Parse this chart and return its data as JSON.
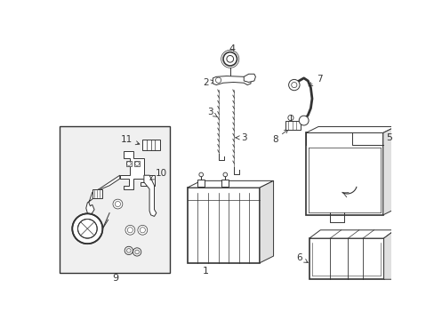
{
  "background_color": "#ffffff",
  "line_color": "#333333",
  "fill_light": "#f0f0f0",
  "fill_white": "#ffffff",
  "fill_gray": "#e0e0e0",
  "lw": 0.7,
  "lw_thick": 1.2
}
